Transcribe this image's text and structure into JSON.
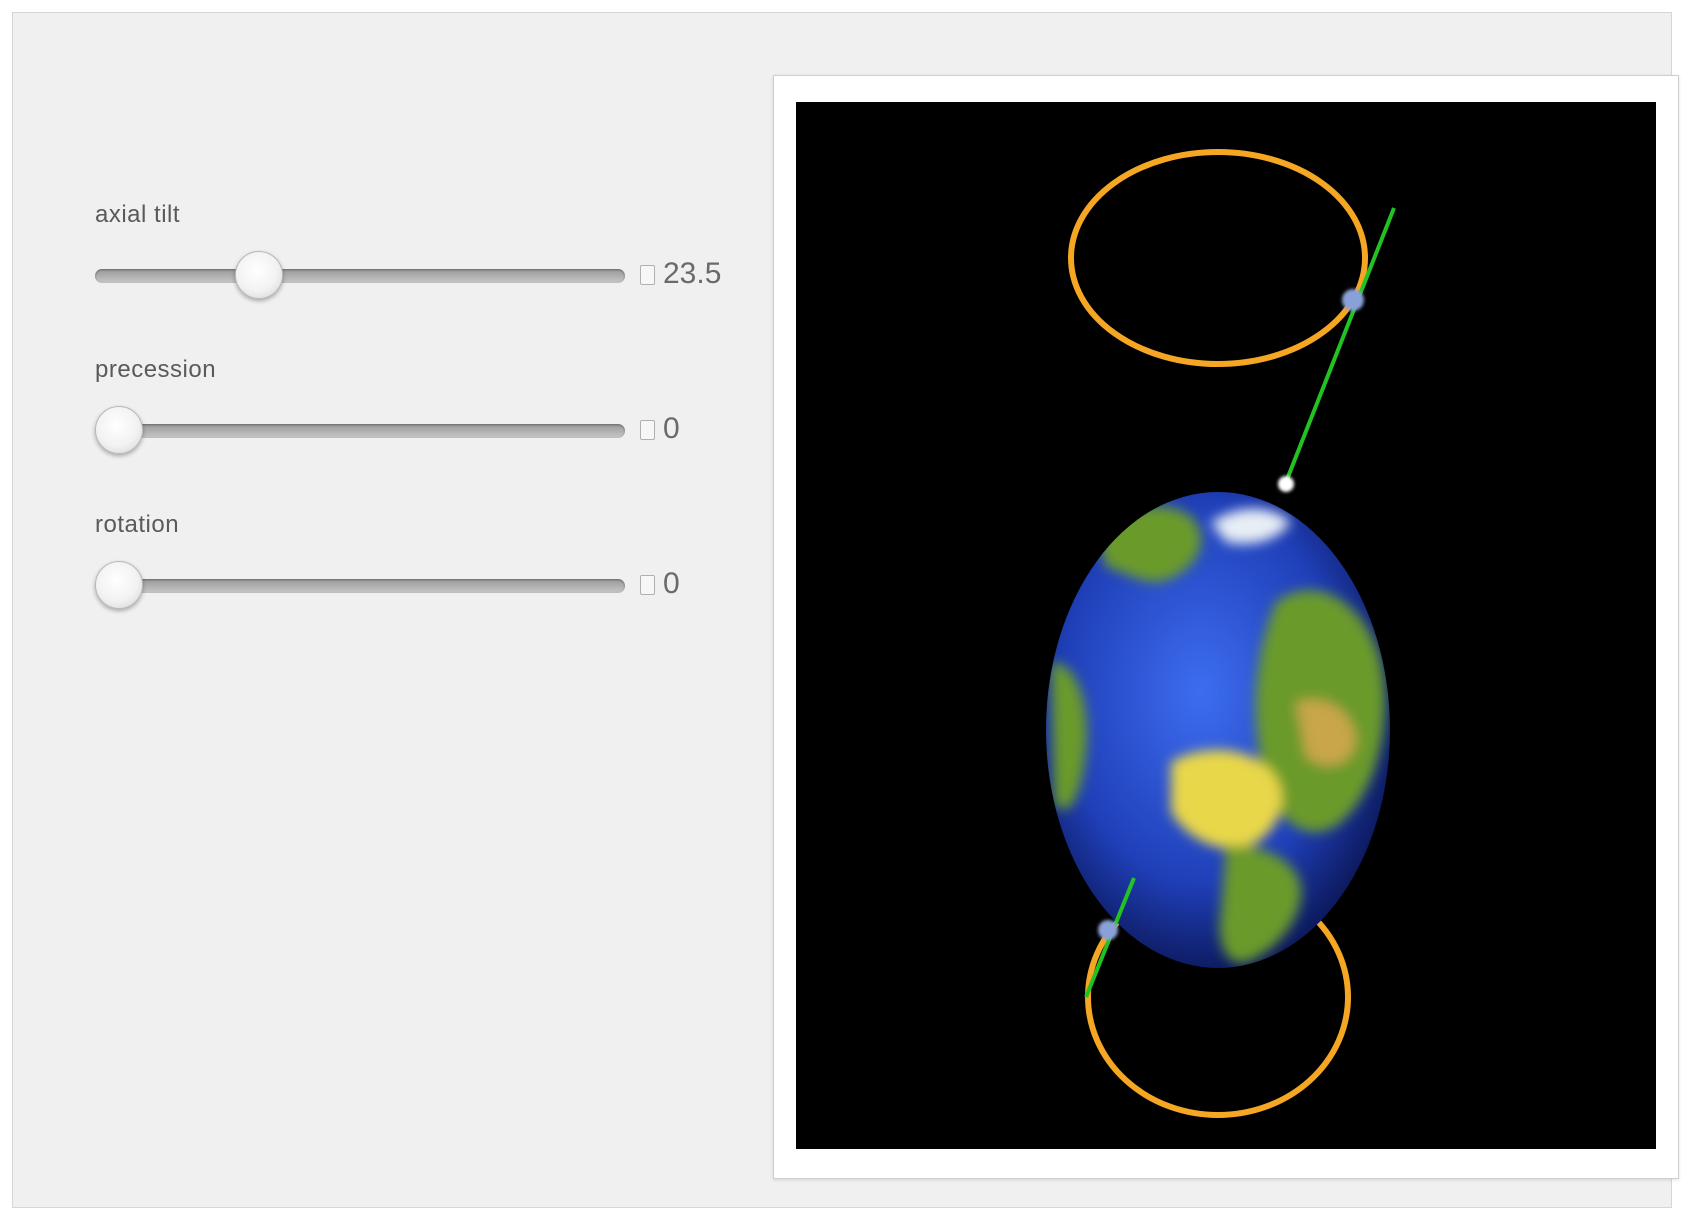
{
  "controls": [
    {
      "label": "axial tilt",
      "value": "23.5",
      "fraction": 0.29
    },
    {
      "label": "precession",
      "value": "0",
      "fraction": 0.0
    },
    {
      "label": "rotation",
      "value": "0",
      "fraction": 0.0
    }
  ],
  "scene": {
    "orbit_color": "#f5a623",
    "axis_color": "#22c222",
    "ocean_color": "#1f3fb8",
    "land_color": "#6a9a2a"
  }
}
